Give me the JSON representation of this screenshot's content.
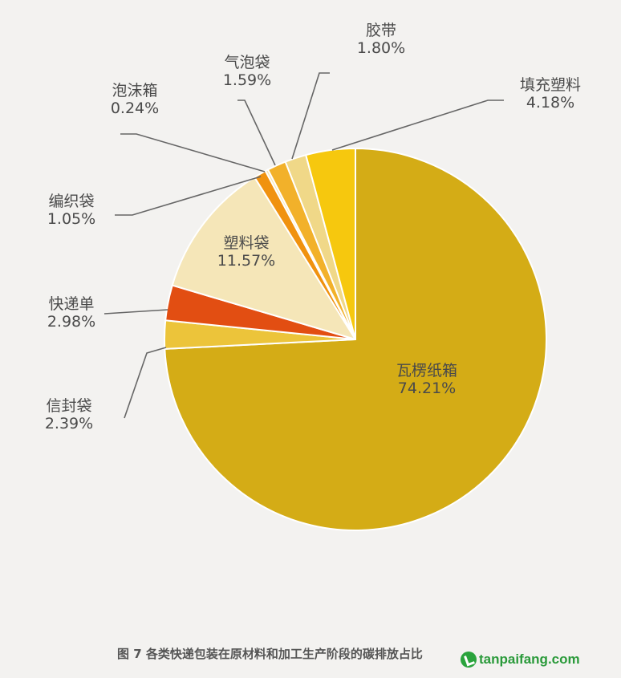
{
  "chart_data": {
    "type": "pie",
    "slices": [
      {
        "label": "瓦楞纸箱",
        "value": 74.21,
        "value_text": "74.21%",
        "color": "#d4ac16"
      },
      {
        "label": "信封袋",
        "value": 2.39,
        "value_text": "2.39%",
        "color": "#ecc43a"
      },
      {
        "label": "快递单",
        "value": 2.98,
        "value_text": "2.98%",
        "color": "#e24e12"
      },
      {
        "label": "塑料袋",
        "value": 11.57,
        "value_text": "11.57%",
        "color": "#f5e6b8"
      },
      {
        "label": "编织袋",
        "value": 1.05,
        "value_text": "1.05%",
        "color": "#f0920f"
      },
      {
        "label": "泡沫箱",
        "value": 0.24,
        "value_text": "0.24%",
        "color": "#f5e6b8"
      },
      {
        "label": "气泡袋",
        "value": 1.59,
        "value_text": "1.59%",
        "color": "#f2b12a"
      },
      {
        "label": "胶带",
        "value": 1.8,
        "value_text": "1.80%",
        "color": "#f0d888"
      },
      {
        "label": "填充塑料",
        "value": 4.18,
        "value_text": "4.18%",
        "color": "#f6c80e"
      }
    ],
    "start_angle_deg": 0,
    "direction": "clockwise"
  },
  "caption": "图 7  各类快递包装在原材料和加工生产阶段的碳排放占比",
  "watermark": "tanpaifang.com"
}
